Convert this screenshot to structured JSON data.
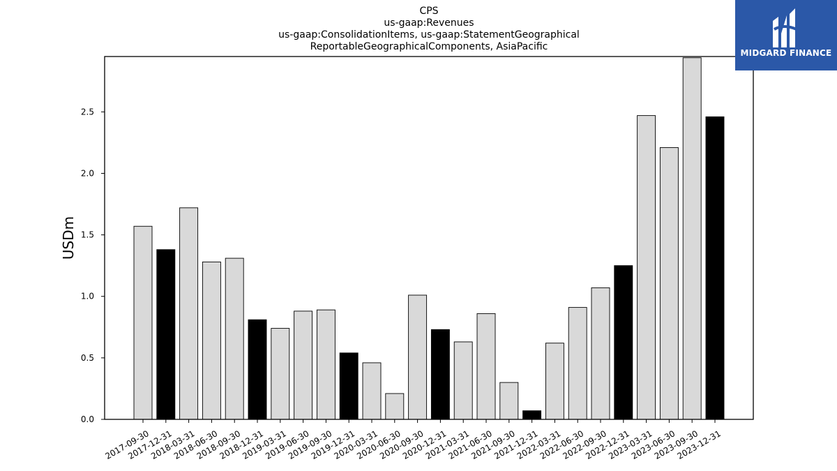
{
  "chart_data": {
    "type": "bar",
    "title_lines": [
      "CPS",
      "us-gaap:Revenues",
      "us-gaap:ConsolidationItems, us-gaap:StatementGeographical",
      "ReportableGeographicalComponents, AsiaPacific"
    ],
    "ylabel": "USDm",
    "xlabel": "",
    "ylim": [
      0,
      2.95
    ],
    "yticks": [
      "0.0",
      "0.5",
      "1.0",
      "1.5",
      "2.0",
      "2.5"
    ],
    "categories": [
      "2017-09-30",
      "2017-12-31",
      "2018-03-31",
      "2018-06-30",
      "2018-09-30",
      "2018-12-31",
      "2019-03-31",
      "2019-06-30",
      "2019-09-30",
      "2019-12-31",
      "2020-03-31",
      "2020-06-30",
      "2020-09-30",
      "2020-12-31",
      "2021-03-31",
      "2021-06-30",
      "2021-09-30",
      "2021-12-31",
      "2022-03-31",
      "2022-06-30",
      "2022-09-30",
      "2022-12-31",
      "2023-03-31",
      "2023-06-30",
      "2023-09-30",
      "2023-12-31"
    ],
    "values": [
      1.57,
      1.38,
      1.72,
      1.28,
      1.31,
      0.81,
      0.74,
      0.88,
      0.89,
      0.54,
      0.46,
      0.21,
      1.01,
      0.73,
      0.63,
      0.86,
      0.3,
      0.07,
      0.62,
      0.91,
      1.07,
      1.25,
      2.47,
      2.21,
      2.94,
      2.46
    ],
    "highlight": [
      false,
      true,
      false,
      false,
      false,
      true,
      false,
      false,
      false,
      true,
      false,
      false,
      false,
      true,
      false,
      false,
      false,
      true,
      false,
      false,
      false,
      true,
      false,
      false,
      false,
      true
    ],
    "colors": {
      "regular": "#d9d9d9",
      "highlight": "#000000",
      "edge": "#000000"
    },
    "grid": false,
    "legend": "none"
  },
  "logo": {
    "text": "MIDGARD FINANCE",
    "background": "#2b58a8"
  }
}
